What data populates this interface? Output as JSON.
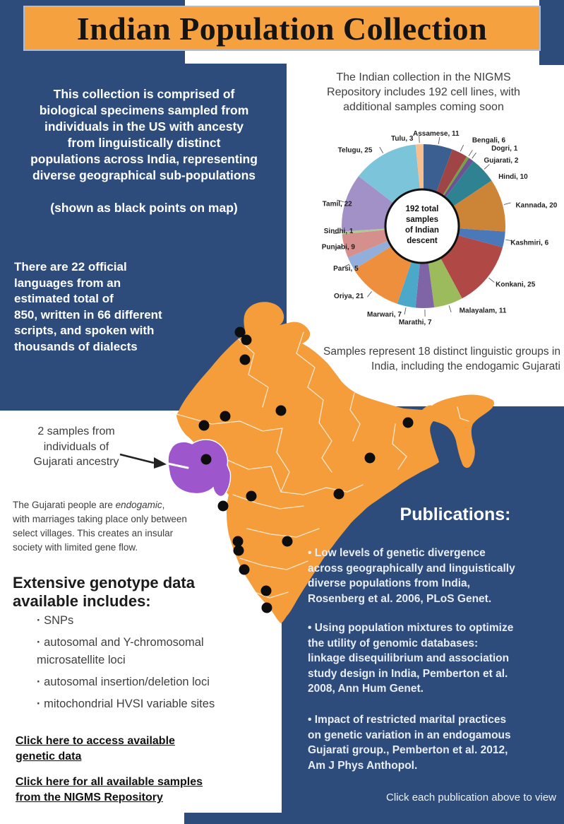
{
  "banner": {
    "title": "Indian Population Collection"
  },
  "intro_left": {
    "main": "This collection is comprised of\nbiological specimens sampled from\nindividuals in the US with ancesty\nfrom linguistically distinct\npopulations across India, representing\ndiverse geographical sub-populations",
    "note": "(shown as black points on map)"
  },
  "intro_right": "The Indian collection in the NIGMS\nRepository includes 192 cell lines, with\nadditional samples coming soon",
  "samples_note": "Samples represent 18 distinct linguistic groups in\nIndia, including the endogamic Gujarati",
  "languages_fact": "There are 22 official\nlanguages from an\nestimated total of\n850, written in 66 different\nscripts, and spoken with\nthousands of dialects",
  "gujarat_callout": {
    "label": "2 samples from\nindividuals of\nGujarati ancestry"
  },
  "endogamic_note": {
    "prefix": "The Gujarati people are ",
    "italic": "endogamic",
    "suffix": ",\nwith marriages taking place only between\nselect villages. This creates an insular\nsociety with limited gene flow."
  },
  "genotype": {
    "heading": "Extensive genotype data\navailable includes:",
    "items": [
      "SNPs",
      "autosomal and Y-chromosomal\nmicrosatellite loci",
      "autosomal insertion/deletion loci",
      "mitochondrial HVSI variable sites"
    ]
  },
  "links": [
    "Click here to access available\ngenetic data",
    "Click here for all available samples\nfrom the NIGMS Repository"
  ],
  "publications": {
    "heading": "Publications:",
    "items": [
      "Low levels of genetic divergence\nacross geographically and linguistically\ndiverse populations from India,\nRosenberg et al. 2006, PLoS Genet.",
      "Using population mixtures to optimize\nthe utility of genomic databases:\nlinkage disequilibrium and association\nstudy design in India, Pemberton et al.\n2008, Ann Hum Genet.",
      "Impact of restricted marital practices\non genetic variation in an endogamous\nGujarati group., Pemberton et al. 2012,\nAm J Phys Anthopol."
    ],
    "footer": "Click each publication above to view"
  },
  "chart_data": {
    "type": "pie",
    "title": "Indian linguistic groups in the NIGMS Repository collection",
    "total": 192,
    "center_label_lines": [
      "192 total",
      "samples",
      "of Indian",
      "descent"
    ],
    "start_angle_deg": 0,
    "direction": "clockwise",
    "series": [
      {
        "name": "Assamese",
        "value": 11,
        "color": "#3B5F91"
      },
      {
        "name": "Bengali",
        "value": 6,
        "color": "#A04545"
      },
      {
        "name": "Dogri",
        "value": 1,
        "color": "#77A23E"
      },
      {
        "name": "Gujarati",
        "value": 2,
        "color": "#6A5494"
      },
      {
        "name": "Hindi",
        "value": 10,
        "color": "#2E8291"
      },
      {
        "name": "Kannada",
        "value": 20,
        "color": "#CC8437"
      },
      {
        "name": "Kashmiri",
        "value": 6,
        "color": "#4A78B8"
      },
      {
        "name": "Konkani",
        "value": 25,
        "color": "#B04845"
      },
      {
        "name": "Malayalam",
        "value": 11,
        "color": "#9CBB5C"
      },
      {
        "name": "Marathi",
        "value": 7,
        "color": "#7F65A5"
      },
      {
        "name": "Marwari",
        "value": 7,
        "color": "#4BA8C9"
      },
      {
        "name": "Oriya",
        "value": 21,
        "color": "#EE8F3D"
      },
      {
        "name": "Parsi",
        "value": 5,
        "color": "#92AEDB"
      },
      {
        "name": "Punjabi",
        "value": 9,
        "color": "#D58F8D"
      },
      {
        "name": "Sindhi",
        "value": 1,
        "color": "#AFCB90"
      },
      {
        "name": "Tamil",
        "value": 22,
        "color": "#A291C6"
      },
      {
        "name": "Telugu",
        "value": 25,
        "color": "#7CC4DA"
      },
      {
        "name": "Tulu",
        "value": 3,
        "color": "#F8BE8E"
      }
    ]
  },
  "colors": {
    "background_blue": "#2D4C7B",
    "banner_orange": "#F6A13F",
    "map_orange": "#F59D3B",
    "gujarat_purple": "#9E56CC",
    "text_light": "#E8EDF5"
  }
}
